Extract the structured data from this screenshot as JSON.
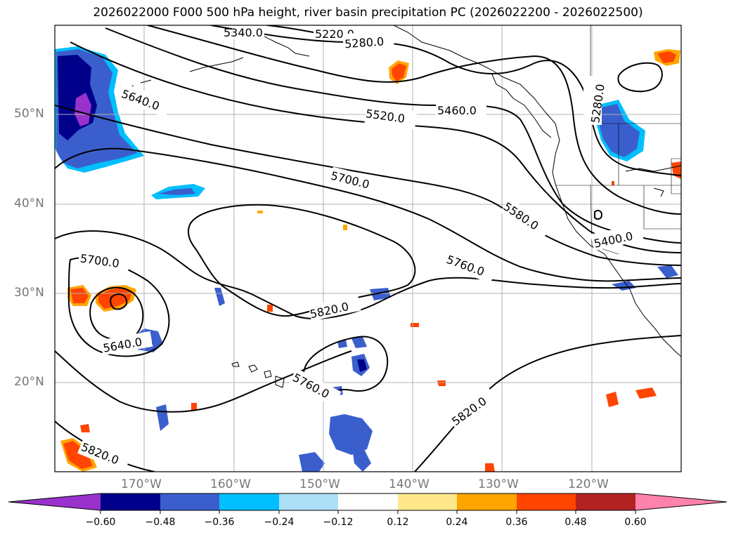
{
  "title": "2026022000 F000 500 hPa height, river basin precipitation PC (2026022200 - 2026022500)",
  "lat_labels": [
    "50°N",
    "40°N",
    "30°N",
    "20°N"
  ],
  "lon_labels": [
    "170°W",
    "160°W",
    "150°W",
    "140°W",
    "130°W",
    "120°W"
  ],
  "contour_labels": [
    "5220.0",
    "5280.0",
    "5280.0",
    "5460.0",
    "5520.0",
    "5640.0",
    "5700.0",
    "5580.0",
    "5400.0",
    "5760.0",
    "5820.0",
    "5700.0",
    "5640.0",
    "5760.0",
    "5820.0",
    "5820.0",
    "5340.0"
  ],
  "colorbar": {
    "ticks": [
      "−0.60",
      "−0.48",
      "−0.36",
      "−0.24",
      "−0.12",
      "0.12",
      "0.24",
      "0.36",
      "0.48",
      "0.60"
    ],
    "colors": [
      "#9932CC",
      "#00008B",
      "#3A5FCD",
      "#00BFFF",
      "#ADE0F7",
      "#FFFFFF",
      "#FFE88C",
      "#FFA500",
      "#FF4500",
      "#B22222",
      "#FF82AB"
    ]
  }
}
